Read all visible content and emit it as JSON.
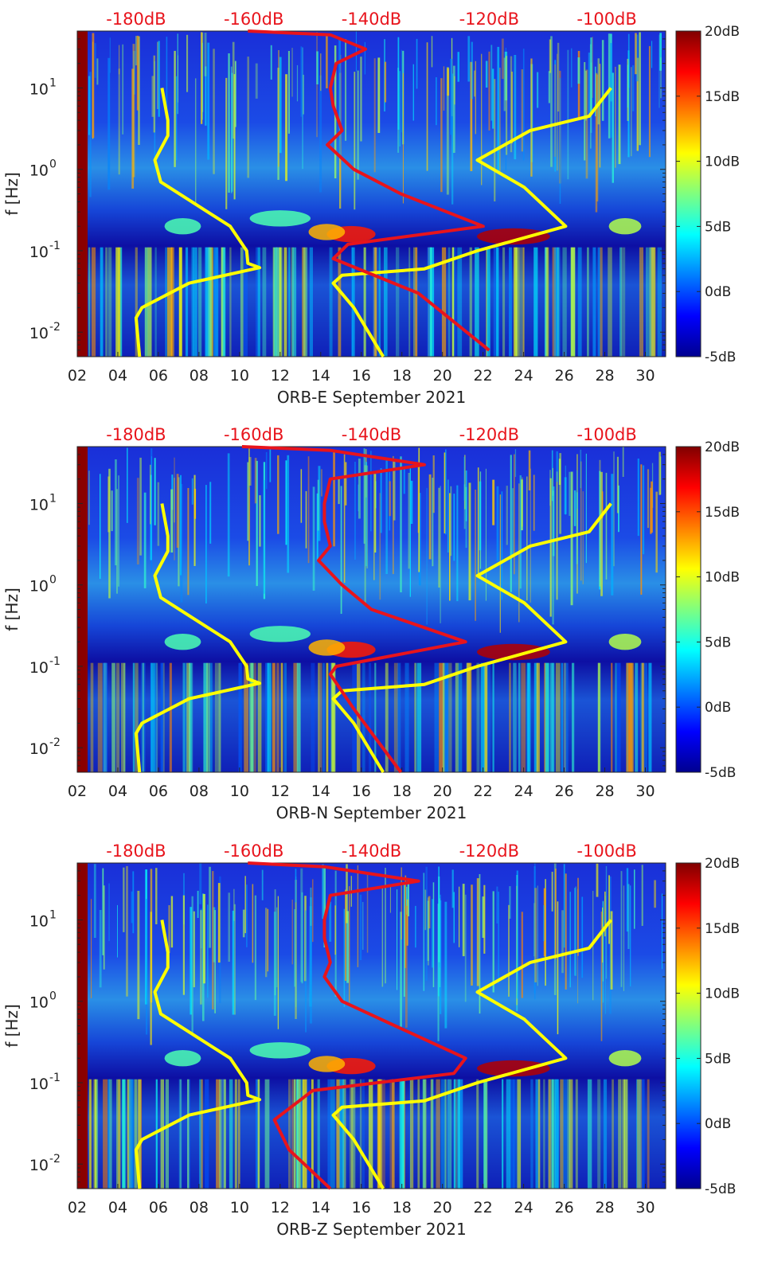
{
  "chart_data": [
    {
      "type": "heatmap",
      "station": "ORB-E",
      "xlabel": "ORB-E September 2021",
      "ylabel": "f [Hz]",
      "x_ticks": [
        "02",
        "04",
        "06",
        "08",
        "10",
        "12",
        "14",
        "16",
        "18",
        "20",
        "22",
        "24",
        "26",
        "28",
        "30"
      ],
      "x_tick_values": [
        2,
        4,
        6,
        8,
        10,
        12,
        14,
        16,
        18,
        20,
        22,
        24,
        26,
        28,
        30
      ],
      "xlim": [
        2,
        31
      ],
      "y_scale": "log",
      "ylim": [
        0.005,
        50
      ],
      "y_ticks": [
        {
          "base": "10",
          "exp": "-2",
          "value": 0.01
        },
        {
          "base": "10",
          "exp": "-1",
          "value": 0.1
        },
        {
          "base": "10",
          "exp": "0",
          "value": 1
        },
        {
          "base": "10",
          "exp": "1",
          "value": 10
        }
      ],
      "top_axis_labels": [
        "-180dB",
        "-160dB",
        "-140dB",
        "-120dB",
        "-100dB"
      ],
      "top_axis_values": [
        -180,
        -160,
        -140,
        -120,
        -100
      ],
      "colorbar": {
        "labels": [
          "20dB",
          "15dB",
          "10dB",
          "5dB",
          "0dB",
          "-5dB"
        ],
        "values": [
          20,
          15,
          10,
          5,
          0,
          -5
        ],
        "range": [
          -5,
          20
        ],
        "colormap": "jet"
      },
      "series": [
        {
          "color": "#ffff00",
          "freq": [
            0.005,
            0.015,
            0.02,
            0.04,
            0.062,
            0.07,
            0.1,
            0.2,
            0.7,
            1.3,
            2.6,
            4,
            10
          ],
          "level": [
            -179.4,
            -180,
            -179,
            -171,
            -159,
            -161,
            -161.2,
            -164,
            -175.8,
            -176.8,
            -174.6,
            -174.6,
            -175.6
          ]
        },
        {
          "color": "#ffff00",
          "freq": [
            0.005,
            0.02,
            0.04,
            0.05,
            0.06,
            0.1,
            0.2,
            0.6,
            1.3,
            3,
            4.5,
            10
          ],
          "level": [
            -138,
            -143,
            -146.5,
            -145,
            -131,
            -122,
            -107,
            -114,
            -122,
            -113,
            -103,
            -99.3
          ]
        },
        {
          "color": "#e8141c",
          "freq": [
            0.006,
            0.03,
            0.08,
            0.12,
            0.2,
            0.5,
            1,
            2,
            3,
            6,
            10,
            20,
            30,
            45,
            50
          ],
          "level": [
            -120,
            -132,
            -146.5,
            -144,
            -121,
            -135,
            -143,
            -147.5,
            -145,
            -146.5,
            -147,
            -146,
            -141,
            -147,
            -161
          ]
        }
      ]
    },
    {
      "type": "heatmap",
      "station": "ORB-N",
      "xlabel": "ORB-N September 2021",
      "ylabel": "f [Hz]",
      "x_ticks": [
        "02",
        "04",
        "06",
        "08",
        "10",
        "12",
        "14",
        "16",
        "18",
        "20",
        "22",
        "24",
        "26",
        "28",
        "30"
      ],
      "x_tick_values": [
        2,
        4,
        6,
        8,
        10,
        12,
        14,
        16,
        18,
        20,
        22,
        24,
        26,
        28,
        30
      ],
      "xlim": [
        2,
        31
      ],
      "y_scale": "log",
      "ylim": [
        0.005,
        50
      ],
      "y_ticks": [
        {
          "base": "10",
          "exp": "-2",
          "value": 0.01
        },
        {
          "base": "10",
          "exp": "-1",
          "value": 0.1
        },
        {
          "base": "10",
          "exp": "0",
          "value": 1
        },
        {
          "base": "10",
          "exp": "1",
          "value": 10
        }
      ],
      "top_axis_labels": [
        "-180dB",
        "-160dB",
        "-140dB",
        "-120dB",
        "-100dB"
      ],
      "top_axis_values": [
        -180,
        -160,
        -140,
        -120,
        -100
      ],
      "colorbar": {
        "labels": [
          "20dB",
          "15dB",
          "10dB",
          "5dB",
          "0dB",
          "-5dB"
        ],
        "values": [
          20,
          15,
          10,
          5,
          0,
          -5
        ],
        "range": [
          -5,
          20
        ],
        "colormap": "jet"
      },
      "series": [
        {
          "color": "#ffff00",
          "freq": [
            0.005,
            0.015,
            0.02,
            0.04,
            0.062,
            0.07,
            0.1,
            0.2,
            0.7,
            1.3,
            2.6,
            4,
            10
          ],
          "level": [
            -179.4,
            -180,
            -179,
            -171,
            -159,
            -161,
            -161.2,
            -164,
            -175.8,
            -176.8,
            -174.6,
            -174.6,
            -175.6
          ]
        },
        {
          "color": "#ffff00",
          "freq": [
            0.005,
            0.02,
            0.04,
            0.05,
            0.06,
            0.1,
            0.2,
            0.6,
            1.3,
            3,
            4.5,
            10
          ],
          "level": [
            -138,
            -143,
            -146.5,
            -145,
            -131,
            -122,
            -107,
            -114,
            -122,
            -113,
            -103,
            -99.3
          ]
        },
        {
          "color": "#e8141c",
          "freq": [
            0.005,
            0.03,
            0.08,
            0.1,
            0.2,
            0.5,
            1,
            2,
            3,
            6,
            10,
            20,
            30,
            45,
            50
          ],
          "level": [
            -135,
            -143,
            -147,
            -146,
            -124,
            -140,
            -145,
            -149,
            -147,
            -148,
            -148,
            -147,
            -131,
            -147,
            -162
          ]
        }
      ]
    },
    {
      "type": "heatmap",
      "station": "ORB-Z",
      "xlabel": "ORB-Z September 2021",
      "ylabel": "f [Hz]",
      "x_ticks": [
        "02",
        "04",
        "06",
        "08",
        "10",
        "12",
        "14",
        "16",
        "18",
        "20",
        "22",
        "24",
        "26",
        "28",
        "30"
      ],
      "x_tick_values": [
        2,
        4,
        6,
        8,
        10,
        12,
        14,
        16,
        18,
        20,
        22,
        24,
        26,
        28,
        30
      ],
      "xlim": [
        2,
        31
      ],
      "y_scale": "log",
      "ylim": [
        0.005,
        50
      ],
      "y_ticks": [
        {
          "base": "10",
          "exp": "-2",
          "value": 0.01
        },
        {
          "base": "10",
          "exp": "-1",
          "value": 0.1
        },
        {
          "base": "10",
          "exp": "0",
          "value": 1
        },
        {
          "base": "10",
          "exp": "1",
          "value": 10
        }
      ],
      "top_axis_labels": [
        "-180dB",
        "-160dB",
        "-140dB",
        "-120dB",
        "-100dB"
      ],
      "top_axis_values": [
        -180,
        -160,
        -140,
        -120,
        -100
      ],
      "colorbar": {
        "labels": [
          "20dB",
          "15dB",
          "10dB",
          "5dB",
          "0dB",
          "-5dB"
        ],
        "values": [
          20,
          15,
          10,
          5,
          0,
          -5
        ],
        "range": [
          -5,
          20
        ],
        "colormap": "jet"
      },
      "series": [
        {
          "color": "#ffff00",
          "freq": [
            0.005,
            0.015,
            0.02,
            0.04,
            0.062,
            0.07,
            0.1,
            0.2,
            0.7,
            1.3,
            2.6,
            4,
            10
          ],
          "level": [
            -179.4,
            -180,
            -179,
            -171,
            -159,
            -161,
            -161.2,
            -164,
            -175.8,
            -176.8,
            -174.6,
            -174.6,
            -175.6
          ]
        },
        {
          "color": "#ffff00",
          "freq": [
            0.005,
            0.02,
            0.04,
            0.05,
            0.06,
            0.1,
            0.2,
            0.6,
            1.3,
            3,
            4.5,
            10
          ],
          "level": [
            -138,
            -143,
            -146.5,
            -145,
            -131,
            -122,
            -107,
            -114,
            -122,
            -113,
            -103,
            -99.3
          ]
        },
        {
          "color": "#e8141c",
          "freq": [
            0.005,
            0.015,
            0.035,
            0.08,
            0.13,
            0.2,
            0.5,
            1,
            2,
            3,
            6,
            10,
            20,
            30,
            45,
            50
          ],
          "level": [
            -147,
            -154,
            -156.5,
            -150,
            -126,
            -124,
            -136,
            -145,
            -148,
            -147,
            -148,
            -148,
            -147,
            -132,
            -148,
            -161
          ]
        }
      ]
    }
  ]
}
